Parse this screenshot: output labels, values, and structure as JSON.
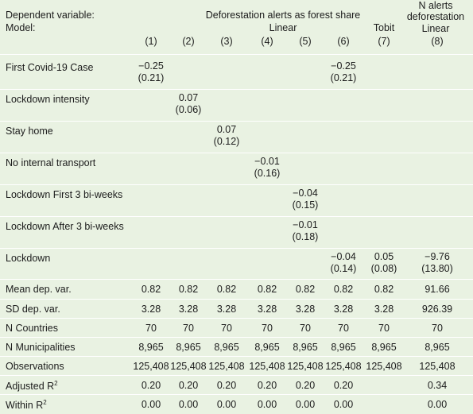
{
  "header": {
    "dep_var_label": "Dependent variable:",
    "model_label": "Model:",
    "group1_title": "Deforestation alerts as forest share",
    "group1_model": "Linear",
    "col7_model": "Tobit",
    "col8_title_line1": "N alerts",
    "col8_title_line2": "deforestation",
    "col8_model": "Linear",
    "columns": [
      "(1)",
      "(2)",
      "(3)",
      "(4)",
      "(5)",
      "(6)",
      "(7)",
      "(8)"
    ]
  },
  "coef_rows": [
    {
      "label": "First Covid-19 Case",
      "cells": [
        [
          "−0.25",
          "(0.21)"
        ],
        [
          "",
          ""
        ],
        [
          "",
          ""
        ],
        [
          "",
          ""
        ],
        [
          "",
          ""
        ],
        [
          "−0.25",
          "(0.21)"
        ],
        [
          "",
          ""
        ],
        [
          "",
          ""
        ]
      ]
    },
    {
      "label": "Lockdown intensity",
      "cells": [
        [
          "",
          ""
        ],
        [
          "0.07",
          "(0.06)"
        ],
        [
          "",
          ""
        ],
        [
          "",
          ""
        ],
        [
          "",
          ""
        ],
        [
          "",
          ""
        ],
        [
          "",
          ""
        ],
        [
          "",
          ""
        ]
      ]
    },
    {
      "label": "Stay home",
      "cells": [
        [
          "",
          ""
        ],
        [
          "",
          ""
        ],
        [
          "0.07",
          "(0.12)"
        ],
        [
          "",
          ""
        ],
        [
          "",
          ""
        ],
        [
          "",
          ""
        ],
        [
          "",
          ""
        ],
        [
          "",
          ""
        ]
      ]
    },
    {
      "label": "No internal transport",
      "cells": [
        [
          "",
          ""
        ],
        [
          "",
          ""
        ],
        [
          "",
          ""
        ],
        [
          "−0.01",
          "(0.16)"
        ],
        [
          "",
          ""
        ],
        [
          "",
          ""
        ],
        [
          "",
          ""
        ],
        [
          "",
          ""
        ]
      ]
    },
    {
      "label": "Lockdown First 3 bi-weeks",
      "cells": [
        [
          "",
          ""
        ],
        [
          "",
          ""
        ],
        [
          "",
          ""
        ],
        [
          "",
          ""
        ],
        [
          "−0.04",
          "(0.15)"
        ],
        [
          "",
          ""
        ],
        [
          "",
          ""
        ],
        [
          "",
          ""
        ]
      ]
    },
    {
      "label": "Lockdown After 3 bi-weeks",
      "cells": [
        [
          "",
          ""
        ],
        [
          "",
          ""
        ],
        [
          "",
          ""
        ],
        [
          "",
          ""
        ],
        [
          "−0.01",
          "(0.18)"
        ],
        [
          "",
          ""
        ],
        [
          "",
          ""
        ],
        [
          "",
          ""
        ]
      ]
    },
    {
      "label": "Lockdown",
      "cells": [
        [
          "",
          ""
        ],
        [
          "",
          ""
        ],
        [
          "",
          ""
        ],
        [
          "",
          ""
        ],
        [
          "",
          ""
        ],
        [
          "−0.04",
          "(0.14)"
        ],
        [
          "0.05",
          "(0.08)"
        ],
        [
          "−9.76",
          "(13.80)"
        ]
      ]
    }
  ],
  "stat_rows": [
    {
      "label": "Mean dep. var.",
      "sup": "",
      "cells": [
        "0.82",
        "0.82",
        "0.82",
        "0.82",
        "0.82",
        "0.82",
        "0.82",
        "91.66"
      ]
    },
    {
      "label": "SD dep. var.",
      "sup": "",
      "cells": [
        "3.28",
        "3.28",
        "3.28",
        "3.28",
        "3.28",
        "3.28",
        "3.28",
        "926.39"
      ]
    },
    {
      "label": "N Countries",
      "sup": "",
      "cells": [
        "70",
        "70",
        "70",
        "70",
        "70",
        "70",
        "70",
        "70"
      ]
    },
    {
      "label": "N Municipalities",
      "sup": "",
      "cells": [
        "8,965",
        "8,965",
        "8,965",
        "8,965",
        "8,965",
        "8,965",
        "8,965",
        "8,965"
      ]
    },
    {
      "label": "Observations",
      "sup": "",
      "cells": [
        "125,408",
        "125,408",
        "125,408",
        "125,408",
        "125,408",
        "125,408",
        "125,408",
        "125,408"
      ]
    },
    {
      "label": "Adjusted R",
      "sup": "2",
      "cells": [
        "0.20",
        "0.20",
        "0.20",
        "0.20",
        "0.20",
        "0.20",
        "",
        "0.34"
      ]
    },
    {
      "label": "Within R",
      "sup": "2",
      "cells": [
        "0.00",
        "0.00",
        "0.00",
        "0.00",
        "0.00",
        "0.00",
        "",
        "0.00"
      ]
    }
  ]
}
